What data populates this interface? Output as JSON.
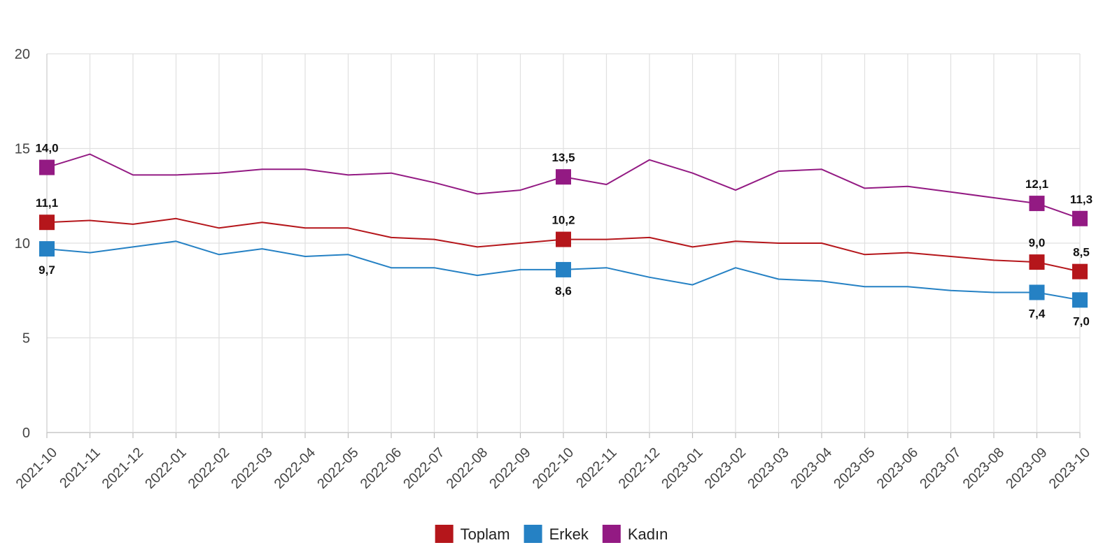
{
  "chart_data": {
    "type": "line",
    "x": [
      "2021-10",
      "2021-11",
      "2021-12",
      "2022-01",
      "2022-02",
      "2022-03",
      "2022-04",
      "2022-05",
      "2022-06",
      "2022-07",
      "2022-08",
      "2022-09",
      "2022-10",
      "2022-11",
      "2022-12",
      "2023-01",
      "2023-02",
      "2023-03",
      "2023-04",
      "2023-05",
      "2023-06",
      "2023-07",
      "2023-08",
      "2023-09",
      "2023-10"
    ],
    "ylim": [
      0,
      20
    ],
    "yticks": [
      0,
      5,
      10,
      15,
      20
    ],
    "grid": true,
    "legend_position": "bottom",
    "title": "",
    "xlabel": "",
    "ylabel": "",
    "series": [
      {
        "name": "Toplam",
        "color": "#b5161b",
        "values": [
          11.1,
          11.2,
          11.0,
          11.3,
          10.8,
          11.1,
          10.8,
          10.8,
          10.3,
          10.2,
          9.8,
          10.0,
          10.2,
          10.2,
          10.3,
          9.8,
          10.1,
          10.0,
          10.0,
          9.4,
          9.5,
          9.3,
          9.1,
          9.0,
          8.5
        ],
        "labels": {
          "0": "11,1",
          "12": "10,2",
          "23": "9,0",
          "24": "8,5"
        },
        "label_position": "above"
      },
      {
        "name": "Erkek",
        "color": "#2581c4",
        "values": [
          9.7,
          9.5,
          9.8,
          10.1,
          9.4,
          9.7,
          9.3,
          9.4,
          8.7,
          8.7,
          8.3,
          8.6,
          8.6,
          8.7,
          8.2,
          7.8,
          8.7,
          8.1,
          8.0,
          7.7,
          7.7,
          7.5,
          7.4,
          7.4,
          7.0
        ],
        "labels": {
          "0": "9,7",
          "12": "8,6",
          "23": "7,4",
          "24": "7,0"
        },
        "label_position": "below"
      },
      {
        "name": "Kadın",
        "color": "#931a83",
        "values": [
          14.0,
          14.7,
          13.6,
          13.6,
          13.7,
          13.9,
          13.9,
          13.6,
          13.7,
          13.2,
          12.6,
          12.8,
          13.5,
          13.1,
          14.4,
          13.7,
          12.8,
          13.8,
          13.9,
          12.9,
          13.0,
          12.7,
          12.4,
          12.1,
          11.3
        ],
        "labels": {
          "0": "14,0",
          "12": "13,5",
          "23": "12,1",
          "24": "11,3"
        },
        "label_position": "above"
      }
    ]
  }
}
